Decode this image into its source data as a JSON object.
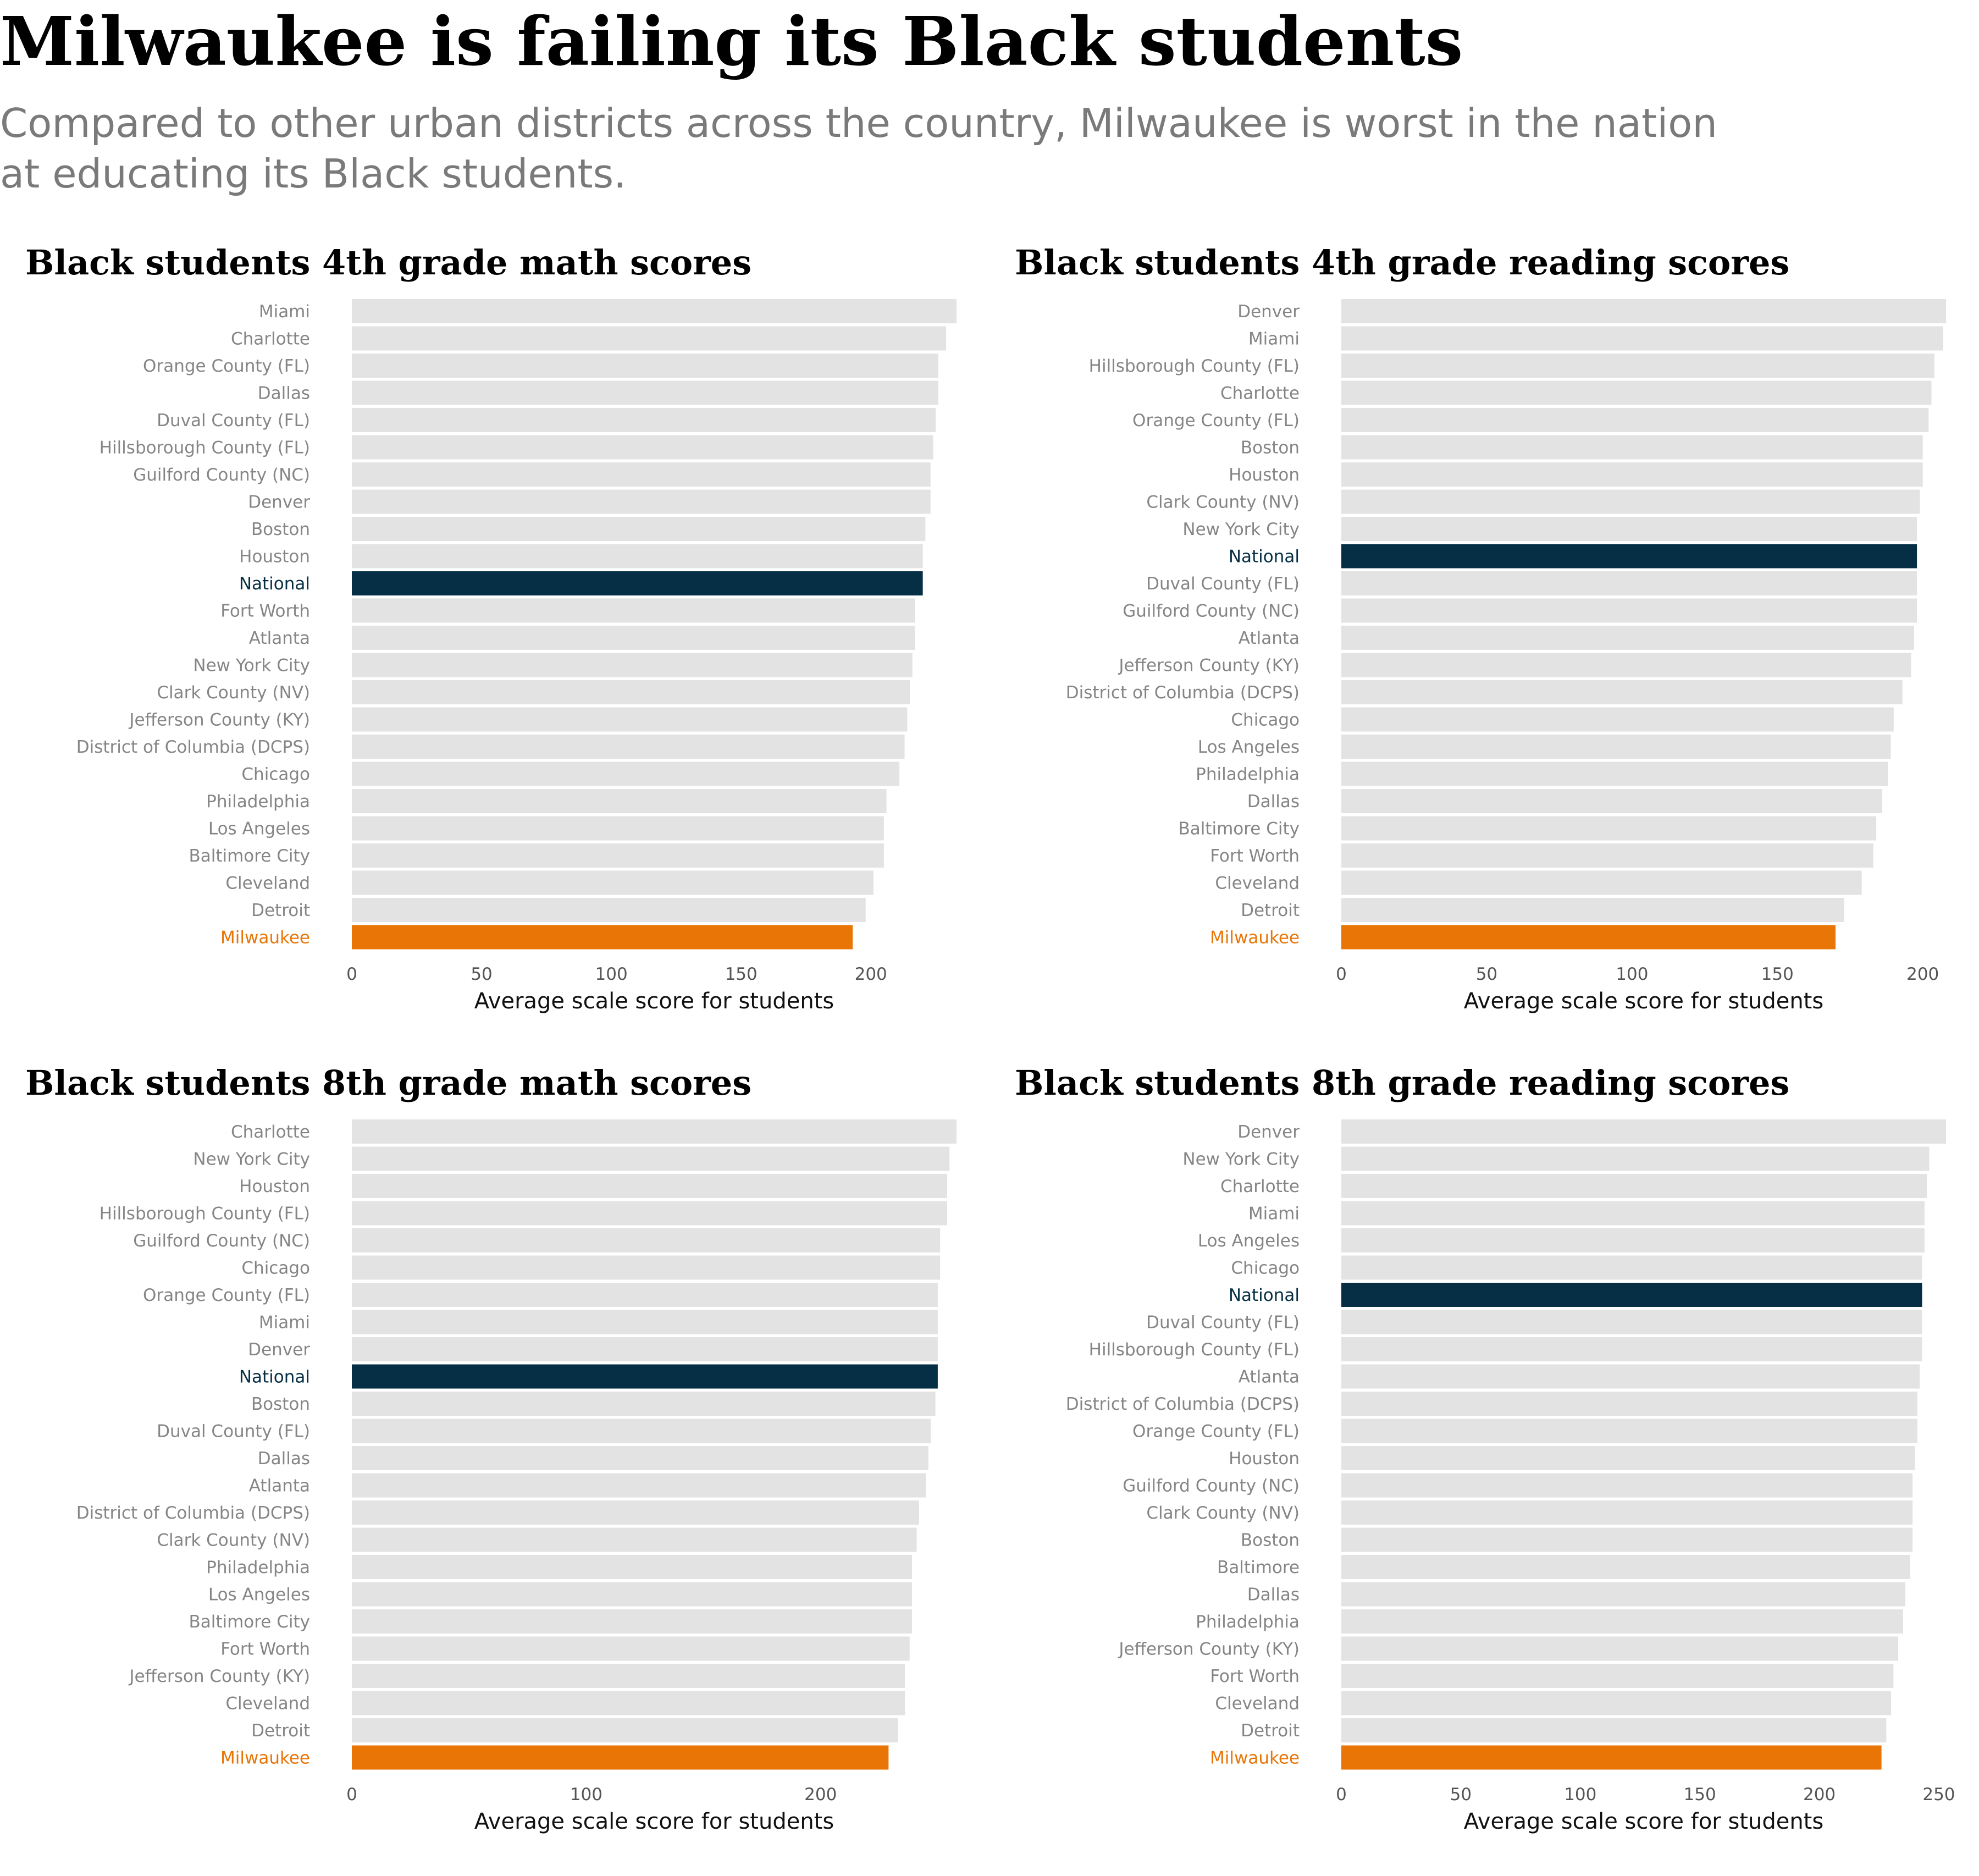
{
  "headline": "Milwaukee is failing its Black students",
  "deck": "Compared to other urban districts across the country, Milwaukee is worst in the nation at educating its Black students.",
  "colors": {
    "default_bar": "#e3e3e3",
    "national_bar": "#062f45",
    "milwaukee_bar": "#e87506",
    "default_label": "#858585",
    "national_label": "#062f45",
    "milwaukee_label": "#e87506"
  },
  "chart_data": [
    {
      "type": "bar",
      "orientation": "horizontal",
      "title": "Black students 4th grade math scores",
      "xlabel": "Average scale score for students",
      "xlim": [
        0,
        233
      ],
      "xticks": [
        0,
        50,
        100,
        150,
        200
      ],
      "categories": [
        "Miami",
        "Charlotte",
        "Orange County (FL)",
        "Dallas",
        "Duval County (FL)",
        "Hillsborough County (FL)",
        "Guilford County (NC)",
        "Denver",
        "Boston",
        "Houston",
        "National",
        "Fort Worth",
        "Atlanta",
        "New York City",
        "Clark County (NV)",
        "Jefferson County (KY)",
        "District of Columbia (DCPS)",
        "Chicago",
        "Philadelphia",
        "Los Angeles",
        "Baltimore City",
        "Cleveland",
        "Detroit",
        "Milwaukee"
      ],
      "values": [
        233,
        229,
        226,
        226,
        225,
        224,
        223,
        223,
        221,
        220,
        220,
        217,
        217,
        216,
        215,
        214,
        213,
        211,
        206,
        205,
        205,
        201,
        198,
        193
      ]
    },
    {
      "type": "bar",
      "orientation": "horizontal",
      "title": "Black students 4th grade reading scores",
      "xlabel": "Average scale score for students",
      "xlim": [
        0,
        208
      ],
      "xticks": [
        0,
        50,
        100,
        150,
        200
      ],
      "categories": [
        "Denver",
        "Miami",
        "Hillsborough County (FL)",
        "Charlotte",
        "Orange County (FL)",
        "Boston",
        "Houston",
        "Clark County (NV)",
        "New York City",
        "National",
        "Duval County (FL)",
        "Guilford County (NC)",
        "Atlanta",
        "Jefferson County (KY)",
        "District of Columbia (DCPS)",
        "Chicago",
        "Los Angeles",
        "Philadelphia",
        "Dallas",
        "Baltimore City",
        "Fort Worth",
        "Cleveland",
        "Detroit",
        "Milwaukee"
      ],
      "values": [
        208,
        207,
        204,
        203,
        202,
        200,
        200,
        199,
        198,
        198,
        198,
        198,
        197,
        196,
        193,
        190,
        189,
        188,
        186,
        184,
        183,
        179,
        173,
        170
      ]
    },
    {
      "type": "bar",
      "orientation": "horizontal",
      "title": "Black students 8th grade math scores",
      "xlabel": "Average scale score for students",
      "xlim": [
        0,
        258
      ],
      "xticks": [
        0,
        100,
        200
      ],
      "categories": [
        "Charlotte",
        "New York City",
        "Houston",
        "Hillsborough County (FL)",
        "Guilford County (NC)",
        "Chicago",
        "Orange County (FL)",
        "Miami",
        "Denver",
        "National",
        "Boston",
        "Duval County (FL)",
        "Dallas",
        "Atlanta",
        "District of Columbia (DCPS)",
        "Clark County (NV)",
        "Philadelphia",
        "Los Angeles",
        "Baltimore City",
        "Fort Worth",
        "Jefferson County (KY)",
        "Cleveland",
        "Detroit",
        "Milwaukee"
      ],
      "values": [
        258,
        255,
        254,
        254,
        251,
        251,
        250,
        250,
        250,
        250,
        249,
        247,
        246,
        245,
        242,
        241,
        239,
        239,
        239,
        238,
        236,
        236,
        233,
        229
      ]
    },
    {
      "type": "bar",
      "orientation": "horizontal",
      "title": "Black students 8th grade reading scores",
      "xlabel": "Average scale score for students",
      "xlim": [
        0,
        253
      ],
      "xticks": [
        0,
        50,
        100,
        150,
        200,
        250
      ],
      "categories": [
        "Denver",
        "New York City",
        "Charlotte",
        "Miami",
        "Los Angeles",
        "Chicago",
        "National",
        "Duval County (FL)",
        "Hillsborough County (FL)",
        "Atlanta",
        "District of Columbia (DCPS)",
        "Orange County (FL)",
        "Houston",
        "Guilford County (NC)",
        "Clark County (NV)",
        "Boston",
        "Baltimore",
        "Dallas",
        "Philadelphia",
        "Jefferson County (KY)",
        "Fort Worth",
        "Cleveland",
        "Detroit",
        "Milwaukee"
      ],
      "values": [
        253,
        246,
        245,
        244,
        244,
        243,
        243,
        243,
        243,
        242,
        241,
        241,
        240,
        239,
        239,
        239,
        238,
        236,
        235,
        233,
        231,
        230,
        228,
        226
      ]
    }
  ]
}
